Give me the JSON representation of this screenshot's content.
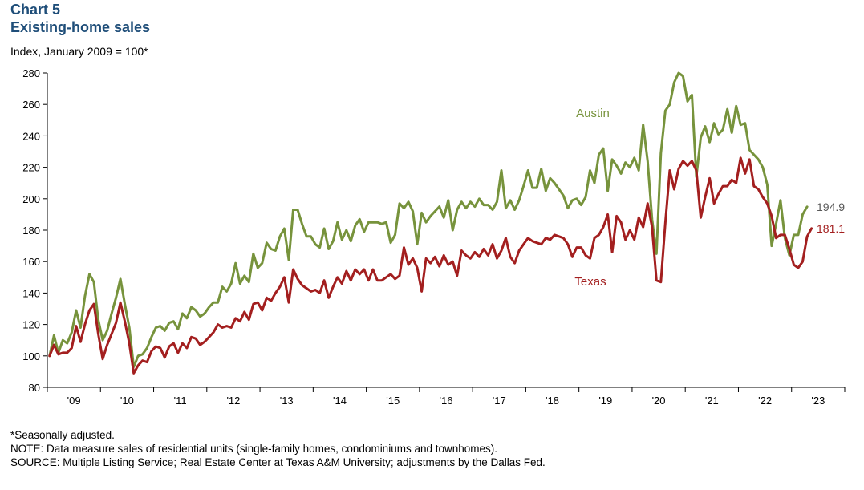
{
  "header": {
    "chart_number": "Chart 5",
    "title": "Existing-home sales",
    "unit_label": "Index,  January 2009 = 100*"
  },
  "footer": {
    "note1": "*Seasonally adjusted.",
    "note2": "NOTE: Data measure sales of residential units (single-family homes, condominiums and townhomes).",
    "note3": "SOURCE: Multiple  Listing Service; Real Estate Center at Texas A&M University;  adjustments by the Dallas Fed."
  },
  "chart_data": {
    "type": "line",
    "title": "Existing-home sales",
    "ylabel": "Index,  January 2009 = 100*",
    "ylim": [
      80,
      280
    ],
    "yticks": [
      80,
      100,
      120,
      140,
      160,
      180,
      200,
      220,
      240,
      260,
      280
    ],
    "x_start": "2009-01",
    "x_end": "2023-06",
    "xtick_labels": [
      "'09",
      "'10",
      "'11",
      "'12",
      "'13",
      "'14",
      "'15",
      "'16",
      "'17",
      "'18",
      "'19",
      "'20",
      "'21",
      "'22",
      "'23"
    ],
    "grid": false,
    "legend": "inline labels",
    "series": [
      {
        "name": "Austin",
        "color": "#77933c",
        "end_label": "194.9",
        "values": [
          100,
          113,
          102,
          110,
          108,
          115,
          129,
          118,
          138,
          152,
          147,
          123,
          110,
          116,
          127,
          137,
          149,
          133,
          118,
          93,
          100,
          101,
          105,
          112,
          118,
          119,
          116,
          121,
          122,
          117,
          127,
          124,
          131,
          129,
          125,
          127,
          131,
          134,
          134,
          144,
          141,
          146,
          159,
          146,
          151,
          147,
          165,
          156,
          159,
          172,
          168,
          167,
          176,
          181,
          161,
          193,
          193,
          184,
          176,
          176,
          171,
          169,
          181,
          168,
          173,
          185,
          174,
          180,
          173,
          183,
          187,
          179,
          185,
          185,
          185,
          184,
          185,
          172,
          177,
          197,
          194,
          198,
          192,
          171,
          191,
          185,
          189,
          192,
          195,
          188,
          199,
          180,
          193,
          198,
          194,
          198,
          195,
          200,
          196,
          196,
          193,
          198,
          218,
          194,
          199,
          193,
          199,
          208,
          218,
          207,
          207,
          219,
          205,
          213,
          210,
          206,
          202,
          194,
          199,
          200,
          196,
          201,
          218,
          210,
          228,
          232,
          205,
          225,
          221,
          216,
          223,
          220,
          226,
          218,
          247,
          224,
          187,
          165,
          229,
          256,
          260,
          274,
          280,
          278,
          262,
          266,
          214,
          239,
          246,
          236,
          248,
          241,
          244,
          257,
          242,
          259,
          247,
          248,
          231,
          228,
          225,
          220,
          209,
          170,
          184,
          199,
          175,
          164,
          177,
          177,
          190,
          194.9
        ]
      },
      {
        "name": "Texas",
        "color": "#a31f1f",
        "end_label": "181.1",
        "values": [
          100,
          107,
          101,
          102,
          102,
          105,
          119,
          109,
          120,
          129,
          133,
          114,
          98,
          107,
          114,
          121,
          134,
          122,
          108,
          89,
          94,
          97,
          96,
          103,
          106,
          105,
          99,
          106,
          108,
          102,
          108,
          105,
          112,
          111,
          107,
          109,
          112,
          115,
          120,
          118,
          119,
          118,
          124,
          122,
          128,
          123,
          133,
          134,
          129,
          137,
          135,
          140,
          144,
          150,
          134,
          155,
          149,
          145,
          143,
          141,
          142,
          140,
          148,
          137,
          144,
          150,
          146,
          154,
          148,
          155,
          152,
          155,
          148,
          155,
          148,
          148,
          150,
          152,
          149,
          151,
          169,
          158,
          162,
          156,
          141,
          162,
          159,
          163,
          157,
          164,
          158,
          160,
          151,
          167,
          164,
          162,
          166,
          163,
          168,
          164,
          171,
          162,
          167,
          175,
          163,
          159,
          167,
          171,
          175,
          173,
          172,
          171,
          175,
          174,
          177,
          176,
          175,
          171,
          163,
          169,
          169,
          164,
          162,
          175,
          177,
          182,
          190,
          166,
          189,
          185,
          174,
          180,
          174,
          188,
          182,
          197,
          182,
          148,
          147,
          185,
          218,
          206,
          219,
          224,
          221,
          224,
          218,
          188,
          201,
          213,
          197,
          203,
          208,
          208,
          212,
          210,
          226,
          216,
          225,
          208,
          206,
          201,
          197,
          189,
          175,
          177,
          177,
          168,
          158,
          156,
          160,
          176,
          181.1
        ]
      }
    ]
  }
}
